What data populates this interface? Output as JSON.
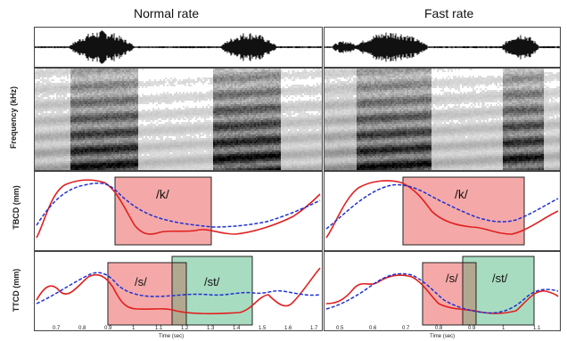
{
  "columns": [
    {
      "title": "Normal rate",
      "x_ticks": [
        "0.7",
        "0.8",
        "0.9",
        "1",
        "1.1",
        "1.2",
        "1.3",
        "1.4",
        "1.5",
        "1.6",
        "1.7"
      ],
      "x_label": "Time (sec)",
      "tbcd_boxes": [
        {
          "label": "/k/",
          "color": "#f4a9a8"
        }
      ],
      "ttcd_boxes": [
        {
          "label": "/s/",
          "color": "#f4a9a8"
        },
        {
          "label": "/st/",
          "color": "#a8dcc0"
        }
      ]
    },
    {
      "title": "Fast rate",
      "x_ticks": [
        "0.5",
        "0.6",
        "0.7",
        "0.8",
        "0.9",
        "1",
        "1.1"
      ],
      "x_label": "Time (sec)",
      "tbcd_boxes": [
        {
          "label": "/k/",
          "color": "#f4a9a8"
        }
      ],
      "ttcd_boxes": [
        {
          "label": "/s/",
          "color": "#f4a9a8"
        },
        {
          "label": "/st/",
          "color": "#a8dcc0"
        }
      ]
    }
  ],
  "y_labels": {
    "spectrogram": "Frequency (kHz)",
    "tbcd": "TBCD (mm)",
    "ttcd": "TTCD (mm)"
  },
  "legend_colors": {
    "solid": "#e02020",
    "dashed": "#2030d0"
  }
}
